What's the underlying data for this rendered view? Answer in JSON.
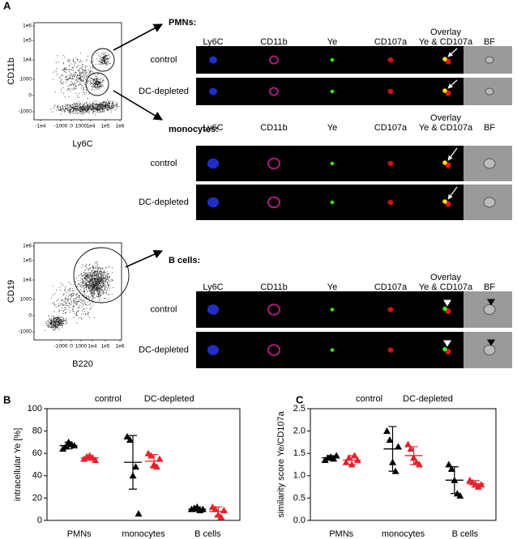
{
  "panel_labels": [
    "A",
    "B",
    "C"
  ],
  "panel_a": {
    "flow_plots": [
      {
        "ylabel": "CD11b",
        "xlabel": "Ly6C",
        "yticks": [
          "1e6",
          "1e5",
          "1e4",
          "1000",
          "0",
          "-1000"
        ],
        "xticks": [
          "-1e4",
          "-1000",
          "0",
          "1000",
          "1e4",
          "1e5",
          "1e6"
        ]
      },
      {
        "ylabel": "CD19",
        "xlabel": "B220",
        "yticks": [
          "1e6",
          "1e5",
          "1e4",
          "1000",
          "0",
          "-1000"
        ],
        "xticks": [
          "-1000",
          "0",
          "1000",
          "1e4",
          "1e5",
          "1e6"
        ]
      }
    ],
    "overlay_label": "Overlay",
    "columns": [
      "Ly6C",
      "CD11b",
      "Ye",
      "CD107a",
      "Ye & CD107a",
      "BF"
    ],
    "groups": [
      {
        "title": "PMNs:",
        "rows": [
          "control",
          "DC-depleted"
        ]
      },
      {
        "title": "monocytes:",
        "rows": [
          "control",
          "DC-depleted"
        ]
      },
      {
        "title": "B cells:",
        "rows": [
          "control",
          "DC-depleted"
        ]
      }
    ]
  },
  "chart_data": [
    {
      "type": "dot",
      "ylabel": "intracellular Ye [%]",
      "categories": [
        "PMNs",
        "monocytes",
        "B cells"
      ],
      "ylim": [
        0,
        100
      ],
      "yticks": [
        0,
        20,
        40,
        60,
        80,
        100
      ],
      "series": [
        {
          "name": "control",
          "color": "#000000",
          "values": [
            [
              64,
              66,
              70,
              68,
              67
            ],
            [
              75,
              72,
              40,
              48,
              6
            ],
            [
              10,
              11,
              12,
              9,
              10
            ]
          ],
          "mean": [
            67,
            52,
            10
          ],
          "sd": [
            3,
            24,
            2
          ]
        },
        {
          "name": "DC-depleted",
          "color": "#e8202a",
          "values": [
            [
              55,
              57,
              58,
              56,
              54
            ],
            [
              60,
              58,
              50,
              48,
              55
            ],
            [
              12,
              10,
              5,
              3,
              9
            ]
          ],
          "mean": [
            56,
            53,
            8
          ],
          "sd": [
            2,
            6,
            4
          ]
        }
      ]
    },
    {
      "type": "dot",
      "ylabel": "similarity score Ye/CD107a",
      "categories": [
        "PMNs",
        "monocytes",
        "B cells"
      ],
      "ylim": [
        0,
        2.5
      ],
      "yticks": [
        {
          "value": 0,
          "label": "0.0"
        },
        0.5,
        {
          "value": 1,
          "label": "1.0"
        },
        1.5,
        {
          "value": 2,
          "label": "2.0"
        },
        2.5
      ],
      "series": [
        {
          "name": "control",
          "color": "#000000",
          "values": [
            [
              1.35,
              1.4,
              1.42,
              1.38,
              1.45
            ],
            [
              2.0,
              1.8,
              1.3,
              1.1,
              1.65
            ],
            [
              1.25,
              1.15,
              0.9,
              0.6,
              0.55
            ]
          ],
          "mean": [
            1.4,
            1.6,
            0.9
          ],
          "sd": [
            0.05,
            0.5,
            0.3
          ]
        },
        {
          "name": "DC-depleted",
          "color": "#e8202a",
          "values": [
            [
              1.3,
              1.4,
              1.25,
              1.45,
              1.35
            ],
            [
              1.7,
              1.6,
              1.4,
              1.3,
              1.25
            ],
            [
              0.9,
              0.85,
              0.8,
              0.75,
              0.8
            ]
          ],
          "mean": [
            1.35,
            1.45,
            0.82
          ],
          "sd": [
            0.1,
            0.2,
            0.07
          ]
        }
      ]
    }
  ]
}
